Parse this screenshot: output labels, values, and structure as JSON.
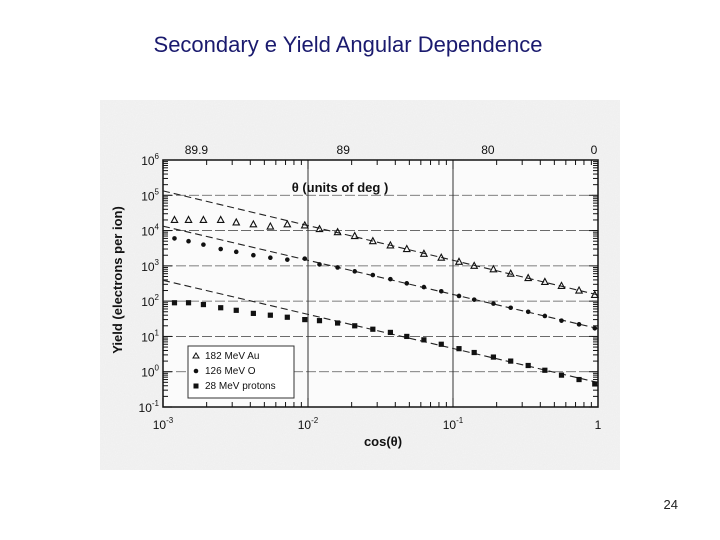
{
  "slide": {
    "title": "Secondary e Yield Angular Dependence",
    "page_number": "24"
  },
  "chart_data": {
    "type": "scatter",
    "xscale": "log",
    "yscale": "log",
    "xlabel": "cos(θ)",
    "ylabel": "Yield (electrons per ion)",
    "xlim": [
      0.001,
      1
    ],
    "ylim": [
      0.1,
      1000000
    ],
    "x_ticks": [
      "10^-3",
      "10^-2",
      "10^-1",
      "1"
    ],
    "y_ticks": [
      "10^-1",
      "10^0",
      "10^1",
      "10^2",
      "10^3",
      "10^4",
      "10^5",
      "10^6"
    ],
    "top_axis": {
      "label": "θ (units of deg )",
      "ticks": [
        {
          "label": "89.9",
          "cos": 0.0017
        },
        {
          "label": "89",
          "cos": 0.0175
        },
        {
          "label": "80",
          "cos": 0.174
        },
        {
          "label": "0",
          "cos": 1
        }
      ]
    },
    "legend_position": "bottom-left",
    "grid": true,
    "series": [
      {
        "name": "182 MeV Au",
        "marker": "triangle",
        "x": [
          0.0012,
          0.0015,
          0.0019,
          0.0025,
          0.0032,
          0.0042,
          0.0055,
          0.0072,
          0.0095,
          0.012,
          0.016,
          0.021,
          0.028,
          0.037,
          0.048,
          0.063,
          0.083,
          0.11,
          0.14,
          0.19,
          0.25,
          0.33,
          0.43,
          0.56,
          0.74,
          0.95
        ],
        "y": [
          20000,
          20000,
          20000,
          20000,
          17000,
          15000,
          13000,
          15000,
          14000,
          11000,
          9000,
          7000,
          5000,
          3800,
          3000,
          2200,
          1700,
          1300,
          1000,
          800,
          600,
          450,
          350,
          270,
          200,
          150
        ]
      },
      {
        "name": "126 MeV O",
        "marker": "circle",
        "x": [
          0.0012,
          0.0015,
          0.0019,
          0.0025,
          0.0032,
          0.0042,
          0.0055,
          0.0072,
          0.0095,
          0.012,
          0.016,
          0.021,
          0.028,
          0.037,
          0.048,
          0.063,
          0.083,
          0.11,
          0.14,
          0.19,
          0.25,
          0.33,
          0.43,
          0.56,
          0.74,
          0.95
        ],
        "y": [
          6000,
          5000,
          4000,
          3000,
          2500,
          2000,
          1700,
          1500,
          1600,
          1100,
          900,
          700,
          550,
          420,
          320,
          250,
          190,
          140,
          110,
          85,
          65,
          50,
          38,
          28,
          22,
          17
        ]
      },
      {
        "name": "28 MeV protons",
        "marker": "square",
        "x": [
          0.0012,
          0.0015,
          0.0019,
          0.0025,
          0.0032,
          0.0042,
          0.0055,
          0.0072,
          0.0095,
          0.012,
          0.016,
          0.021,
          0.028,
          0.037,
          0.048,
          0.063,
          0.083,
          0.11,
          0.14,
          0.19,
          0.25,
          0.33,
          0.43,
          0.56,
          0.74,
          0.95
        ],
        "y": [
          90,
          90,
          80,
          65,
          55,
          45,
          40,
          35,
          30,
          28,
          24,
          20,
          16,
          13,
          10,
          8,
          6,
          4.5,
          3.5,
          2.6,
          2,
          1.5,
          1.1,
          0.8,
          0.6,
          0.45
        ]
      }
    ]
  }
}
